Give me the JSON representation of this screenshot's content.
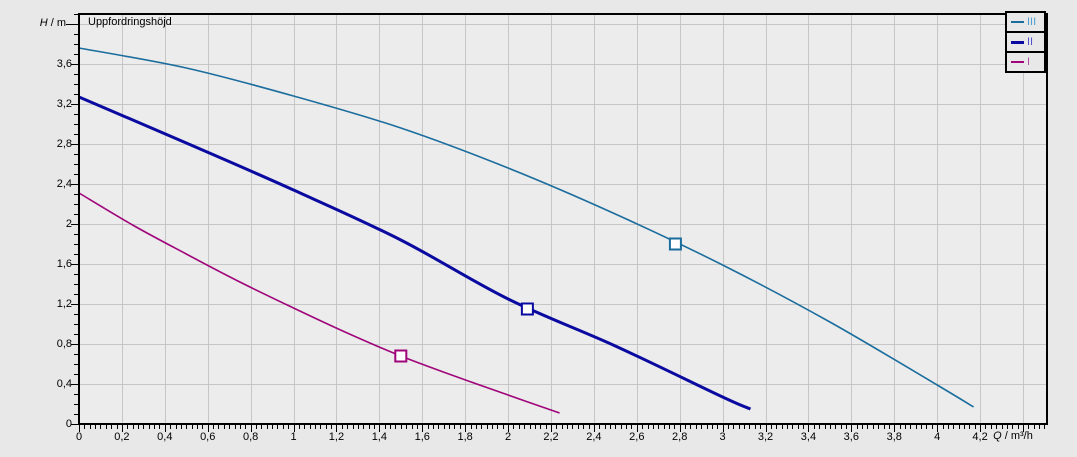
{
  "window": {
    "outer_bg": "#e8e8e8"
  },
  "chart_data": {
    "type": "line",
    "title": "Uppfordringshöjd",
    "x_axis": {
      "unit_italic": "Q",
      "unit_rest": " / m³/h",
      "min": 0,
      "max": 4.512,
      "major_step": 0.2,
      "minor_step": 0.025,
      "tick_labels": [
        "0",
        "0,2",
        "0,4",
        "0,6",
        "0,8",
        "1",
        "1,2",
        "1,4",
        "1,6",
        "1,8",
        "2",
        "2,2",
        "2,4",
        "2,6",
        "2,8",
        "3",
        "3,2",
        "3,4",
        "3,6",
        "3,8",
        "4",
        "4,2"
      ]
    },
    "y_axis": {
      "unit_italic": "H",
      "unit_rest": " / m",
      "min": 0,
      "max": 4.1,
      "major_step": 0.4,
      "minor_step": 0.1,
      "tick_labels": [
        "0",
        "0,4",
        "0,8",
        "1,2",
        "1,6",
        "2",
        "2,4",
        "2,8",
        "3,2",
        "3,6"
      ]
    },
    "grid": true,
    "legend_position": "top-right",
    "colors": {
      "plot_bg": "#ececec",
      "outer_bg": "#e8e8e8",
      "grid": "#c6c6c6",
      "border": "#000000",
      "marker_fill": "#ffffff"
    },
    "series": [
      {
        "name": "III",
        "color": "#1b6d9d",
        "label_color": "#4f9ecf",
        "line_width": 1.6,
        "points": [
          [
            0,
            3.76
          ],
          [
            0.5,
            3.56
          ],
          [
            1,
            3.28
          ],
          [
            1.5,
            2.96
          ],
          [
            2,
            2.56
          ],
          [
            2.5,
            2.1
          ],
          [
            3,
            1.59
          ],
          [
            3.5,
            1.02
          ],
          [
            4,
            0.39
          ],
          [
            4.17,
            0.17
          ]
        ],
        "duty_point": [
          2.78,
          1.8
        ]
      },
      {
        "name": "II",
        "color": "#0a0aa0",
        "label_color": "#4d4dd1",
        "line_width": 3,
        "points": [
          [
            0,
            3.27
          ],
          [
            0.5,
            2.81
          ],
          [
            1,
            2.34
          ],
          [
            1.5,
            1.84
          ],
          [
            2,
            1.25
          ],
          [
            2.5,
            0.78
          ],
          [
            3,
            0.27
          ],
          [
            3.13,
            0.15
          ]
        ],
        "duty_point": [
          2.09,
          1.15
        ]
      },
      {
        "name": "I",
        "color": "#a0047a",
        "label_color": "#b44fa4",
        "line_width": 1.6,
        "points": [
          [
            0,
            2.31
          ],
          [
            0.25,
            1.99
          ],
          [
            0.5,
            1.7
          ],
          [
            0.75,
            1.42
          ],
          [
            1,
            1.16
          ],
          [
            1.25,
            0.91
          ],
          [
            1.5,
            0.68
          ],
          [
            1.75,
            0.48
          ],
          [
            2,
            0.29
          ],
          [
            2.24,
            0.11
          ]
        ],
        "duty_point": [
          1.5,
          0.68
        ]
      }
    ]
  }
}
